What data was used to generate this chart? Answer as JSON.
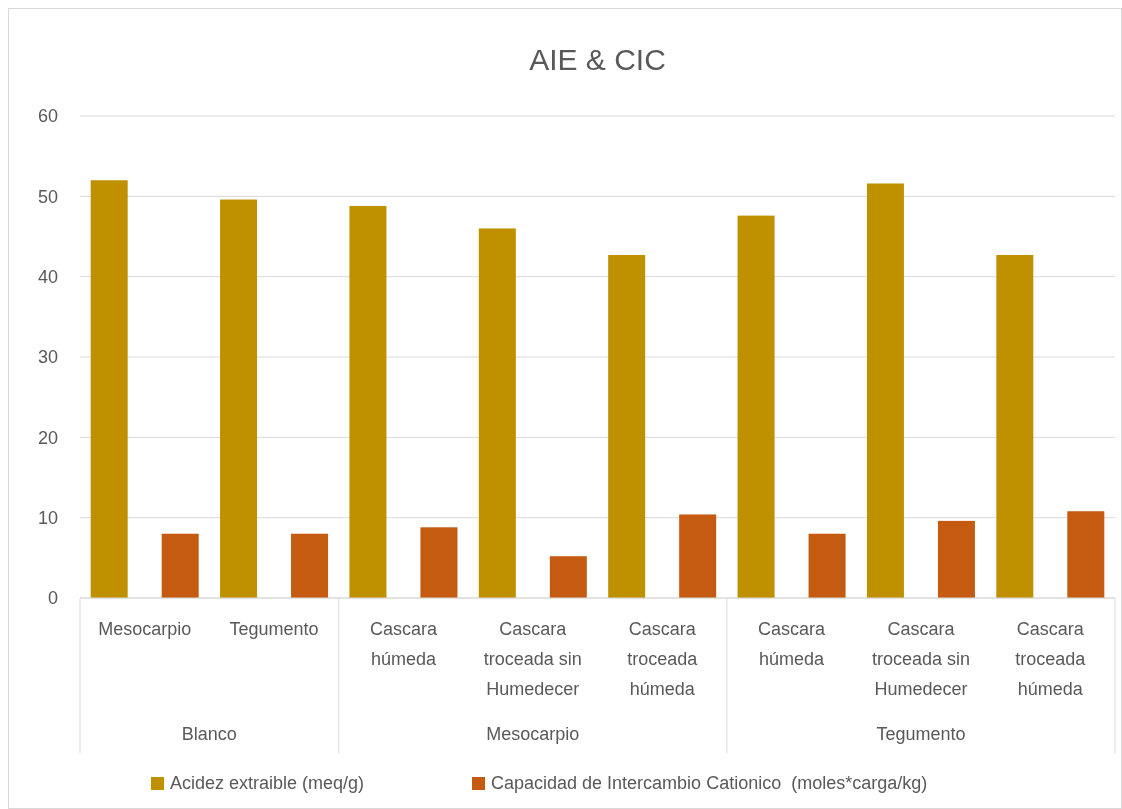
{
  "chart_data": {
    "type": "bar",
    "title": "AIE & CIC",
    "categories": [
      "Mesocarpio",
      "Tegumento",
      "Cascara húmeda",
      "Cascara troceada sin Humedecer",
      "Cascara troceada húmeda",
      "Cascara húmeda",
      "Cascara troceada sin Humedecer",
      "Cascara troceada húmeda"
    ],
    "series": [
      {
        "name": "Acidez extraible (meq/g)",
        "color": "#bf9000",
        "values": [
          52,
          49.6,
          48.8,
          46,
          42.7,
          47.6,
          51.6,
          42.7
        ]
      },
      {
        "name": "Capacidad de Intercambio Cationico  (moles*carga/kg)",
        "color": "#c55a11",
        "values": [
          8,
          8,
          8.8,
          5.2,
          10.4,
          8,
          9.6,
          10.8
        ]
      }
    ],
    "annotations": [
      "Blanco",
      "Mesocarpio",
      "Tegumento"
    ],
    "ylim": [
      0,
      60
    ],
    "yticks": [
      0,
      10,
      20,
      30,
      40,
      50,
      60
    ],
    "grid": true,
    "legend": "bottom"
  }
}
